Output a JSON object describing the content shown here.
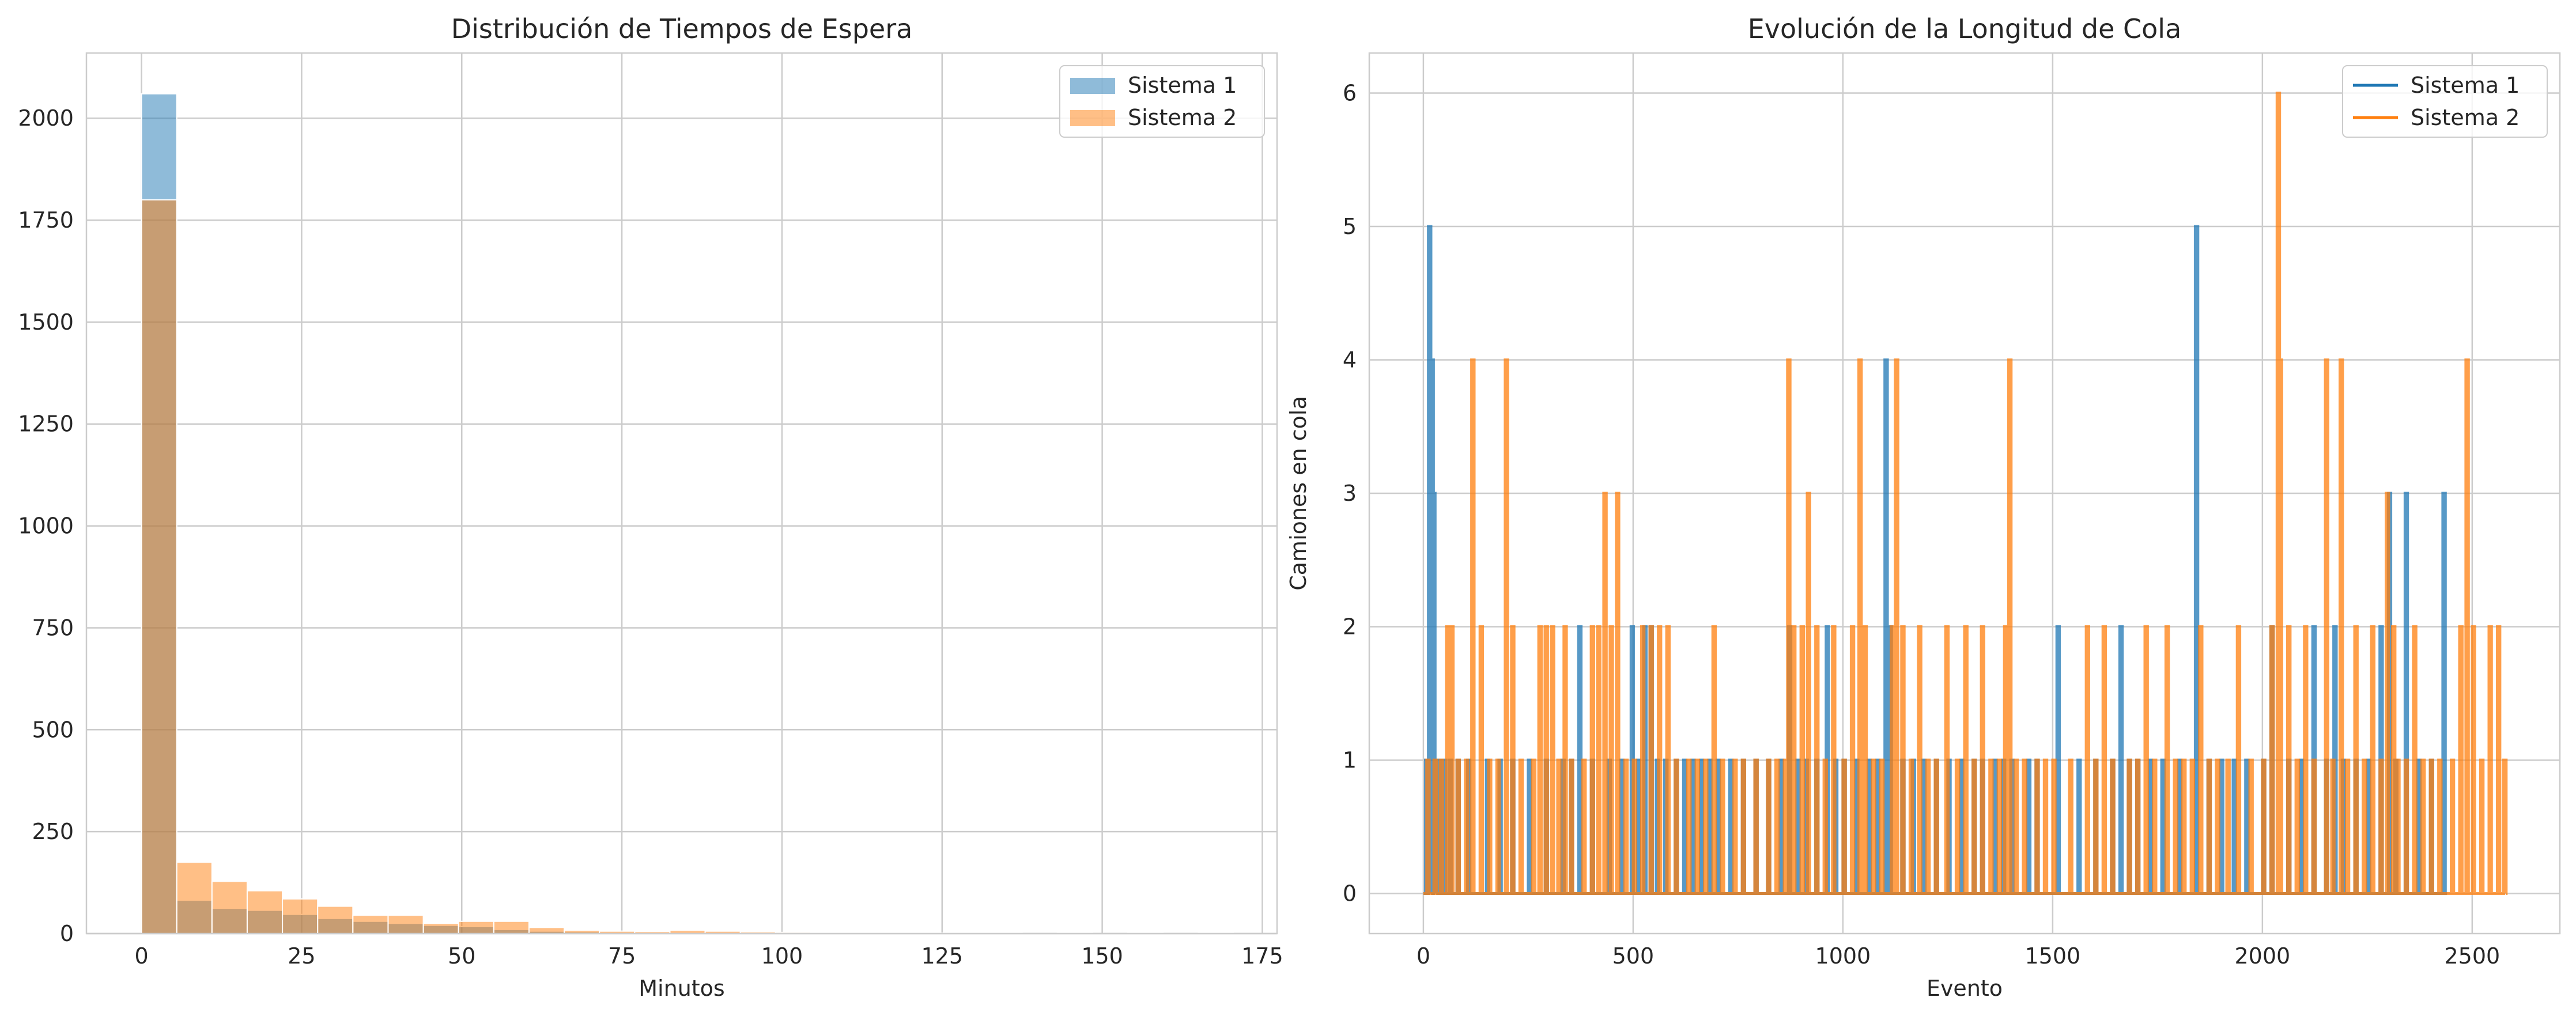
{
  "chart_data": [
    {
      "type": "bar",
      "subtype": "histogram",
      "title": "Distribución de Tiempos de Espera",
      "xlabel": "Minutos",
      "ylabel": "",
      "xlim": [
        -8.6,
        177.3
      ],
      "ylim": [
        0,
        2160
      ],
      "xticks": [
        0,
        25,
        50,
        75,
        100,
        125,
        150,
        175
      ],
      "yticks": [
        0,
        250,
        500,
        750,
        1000,
        1250,
        1500,
        1750,
        2000
      ],
      "grid": true,
      "legend": "top-right",
      "series": [
        {
          "name": "Sistema 1",
          "color": "#1f77b4",
          "opacity": 0.5,
          "bin_edges": [
            0,
            5.5,
            11,
            16.5,
            22,
            27.5,
            33,
            38.5,
            44,
            49.5,
            55,
            60.5,
            66,
            71.5,
            77,
            82.5,
            88,
            93.5,
            99
          ],
          "counts": [
            2060,
            82,
            62,
            57,
            47,
            37,
            30,
            25,
            20,
            17,
            10,
            6,
            4,
            3,
            2,
            2,
            1,
            1
          ]
        },
        {
          "name": "Sistema 2",
          "color": "#ff7f0e",
          "opacity": 0.5,
          "bin_edges": [
            0,
            5.5,
            11,
            16.5,
            22,
            27.5,
            33,
            38.5,
            44,
            49.5,
            55,
            60.5,
            66,
            71.5,
            77,
            82.5,
            88,
            93.5,
            99,
            104.5,
            110,
            115.5,
            121,
            126.5,
            132,
            137.5,
            143,
            148.5,
            154,
            159.5,
            165,
            170.5
          ],
          "counts": [
            1800,
            175,
            128,
            105,
            85,
            67,
            45,
            45,
            25,
            30,
            30,
            15,
            8,
            6,
            5,
            8,
            6,
            4,
            3,
            2,
            2,
            1,
            1,
            1,
            1,
            0,
            1,
            0,
            1,
            0,
            1
          ]
        }
      ]
    },
    {
      "type": "line",
      "subtype": "step",
      "title": "Evolución de la Longitud de Cola",
      "xlabel": "Evento",
      "ylabel": "Camiones en cola",
      "xlim": [
        -129,
        2709
      ],
      "ylim": [
        -0.3,
        6.3
      ],
      "xticks": [
        0,
        500,
        1000,
        1500,
        2000,
        2500
      ],
      "yticks": [
        0,
        1,
        2,
        3,
        4,
        5,
        6
      ],
      "grid": true,
      "legend": "top-right",
      "series": [
        {
          "name": "Sistema 1",
          "color": "#1f77b4",
          "x_max": 2440,
          "spikes": [
            [
              5,
              1
            ],
            [
              12,
              5
            ],
            [
              18,
              4
            ],
            [
              22,
              3
            ],
            [
              28,
              1
            ],
            [
              35,
              1
            ],
            [
              48,
              1
            ],
            [
              62,
              1
            ],
            [
              80,
              1
            ],
            [
              105,
              1
            ],
            [
              150,
              1
            ],
            [
              180,
              1
            ],
            [
              210,
              1
            ],
            [
              250,
              1
            ],
            [
              290,
              1
            ],
            [
              330,
              1
            ],
            [
              350,
              1
            ],
            [
              370,
              2
            ],
            [
              400,
              1
            ],
            [
              440,
              1
            ],
            [
              470,
              1
            ],
            [
              495,
              2
            ],
            [
              510,
              1
            ],
            [
              525,
              2
            ],
            [
              540,
              2
            ],
            [
              555,
              1
            ],
            [
              575,
              1
            ],
            [
              600,
              1
            ],
            [
              620,
              1
            ],
            [
              640,
              1
            ],
            [
              660,
              1
            ],
            [
              680,
              1
            ],
            [
              700,
              1
            ],
            [
              730,
              1
            ],
            [
              760,
              1
            ],
            [
              790,
              1
            ],
            [
              820,
              1
            ],
            [
              850,
              1
            ],
            [
              870,
              2
            ],
            [
              890,
              1
            ],
            [
              910,
              1
            ],
            [
              935,
              1
            ],
            [
              960,
              2
            ],
            [
              980,
              1
            ],
            [
              1000,
              1
            ],
            [
              1030,
              1
            ],
            [
              1060,
              1
            ],
            [
              1080,
              1
            ],
            [
              1100,
              4
            ],
            [
              1110,
              2
            ],
            [
              1140,
              1
            ],
            [
              1165,
              1
            ],
            [
              1190,
              1
            ],
            [
              1220,
              1
            ],
            [
              1250,
              1
            ],
            [
              1280,
              1
            ],
            [
              1310,
              1
            ],
            [
              1330,
              1
            ],
            [
              1360,
              1
            ],
            [
              1380,
              1
            ],
            [
              1400,
              1
            ],
            [
              1440,
              1
            ],
            [
              1460,
              1
            ],
            [
              1510,
              2
            ],
            [
              1560,
              1
            ],
            [
              1600,
              1
            ],
            [
              1640,
              1
            ],
            [
              1660,
              2
            ],
            [
              1680,
              1
            ],
            [
              1700,
              1
            ],
            [
              1730,
              1
            ],
            [
              1760,
              1
            ],
            [
              1800,
              1
            ],
            [
              1840,
              5
            ],
            [
              1870,
              1
            ],
            [
              1900,
              1
            ],
            [
              1930,
              1
            ],
            [
              1960,
              1
            ],
            [
              2000,
              1
            ],
            [
              2020,
              2
            ],
            [
              2060,
              1
            ],
            [
              2090,
              1
            ],
            [
              2120,
              2
            ],
            [
              2150,
              1
            ],
            [
              2170,
              2
            ],
            [
              2190,
              1
            ],
            [
              2220,
              1
            ],
            [
              2250,
              1
            ],
            [
              2280,
              2
            ],
            [
              2300,
              3
            ],
            [
              2315,
              1
            ],
            [
              2340,
              3
            ],
            [
              2370,
              1
            ],
            [
              2400,
              1
            ],
            [
              2430,
              3
            ]
          ]
        },
        {
          "name": "Sistema 2",
          "color": "#ff7f0e",
          "x_max": 2580,
          "spikes": [
            [
              8,
              1
            ],
            [
              25,
              1
            ],
            [
              40,
              1
            ],
            [
              55,
              2
            ],
            [
              65,
              2
            ],
            [
              80,
              1
            ],
            [
              100,
              1
            ],
            [
              115,
              4
            ],
            [
              135,
              2
            ],
            [
              155,
              1
            ],
            [
              175,
              1
            ],
            [
              195,
              4
            ],
            [
              210,
              2
            ],
            [
              230,
              1
            ],
            [
              260,
              1
            ],
            [
              275,
              2
            ],
            [
              290,
              2
            ],
            [
              305,
              2
            ],
            [
              320,
              1
            ],
            [
              335,
              2
            ],
            [
              350,
              1
            ],
            [
              380,
              1
            ],
            [
              400,
              2
            ],
            [
              415,
              2
            ],
            [
              430,
              3
            ],
            [
              445,
              2
            ],
            [
              460,
              3
            ],
            [
              480,
              1
            ],
            [
              500,
              1
            ],
            [
              520,
              2
            ],
            [
              540,
              2
            ],
            [
              560,
              2
            ],
            [
              580,
              2
            ],
            [
              600,
              1
            ],
            [
              630,
              1
            ],
            [
              650,
              1
            ],
            [
              670,
              1
            ],
            [
              690,
              2
            ],
            [
              710,
              1
            ],
            [
              740,
              1
            ],
            [
              760,
              1
            ],
            [
              790,
              1
            ],
            [
              820,
              1
            ],
            [
              840,
              1
            ],
            [
              860,
              1
            ],
            [
              868,
              4
            ],
            [
              880,
              2
            ],
            [
              900,
              2
            ],
            [
              915,
              3
            ],
            [
              935,
              2
            ],
            [
              955,
              1
            ],
            [
              975,
              2
            ],
            [
              1000,
              1
            ],
            [
              1020,
              2
            ],
            [
              1038,
              4
            ],
            [
              1050,
              2
            ],
            [
              1070,
              1
            ],
            [
              1090,
              1
            ],
            [
              1115,
              2
            ],
            [
              1125,
              4
            ],
            [
              1140,
              2
            ],
            [
              1160,
              1
            ],
            [
              1180,
              2
            ],
            [
              1200,
              1
            ],
            [
              1220,
              1
            ],
            [
              1245,
              2
            ],
            [
              1270,
              1
            ],
            [
              1290,
              2
            ],
            [
              1310,
              1
            ],
            [
              1330,
              2
            ],
            [
              1350,
              1
            ],
            [
              1370,
              1
            ],
            [
              1385,
              2
            ],
            [
              1395,
              4
            ],
            [
              1410,
              1
            ],
            [
              1430,
              1
            ],
            [
              1460,
              1
            ],
            [
              1480,
              1
            ],
            [
              1500,
              1
            ],
            [
              1540,
              1
            ],
            [
              1580,
              2
            ],
            [
              1600,
              1
            ],
            [
              1620,
              2
            ],
            [
              1640,
              1
            ],
            [
              1680,
              1
            ],
            [
              1700,
              1
            ],
            [
              1720,
              2
            ],
            [
              1740,
              1
            ],
            [
              1770,
              2
            ],
            [
              1790,
              1
            ],
            [
              1810,
              1
            ],
            [
              1830,
              1
            ],
            [
              1850,
              2
            ],
            [
              1870,
              1
            ],
            [
              1890,
              1
            ],
            [
              1915,
              1
            ],
            [
              1940,
              2
            ],
            [
              1970,
              1
            ],
            [
              2000,
              1
            ],
            [
              2020,
              2
            ],
            [
              2035,
              6
            ],
            [
              2040,
              4
            ],
            [
              2060,
              2
            ],
            [
              2080,
              1
            ],
            [
              2100,
              2
            ],
            [
              2120,
              1
            ],
            [
              2150,
              4
            ],
            [
              2165,
              1
            ],
            [
              2185,
              4
            ],
            [
              2200,
              1
            ],
            [
              2220,
              2
            ],
            [
              2240,
              1
            ],
            [
              2260,
              2
            ],
            [
              2280,
              1
            ],
            [
              2295,
              3
            ],
            [
              2310,
              2
            ],
            [
              2320,
              1
            ],
            [
              2340,
              1
            ],
            [
              2360,
              2
            ],
            [
              2380,
              1
            ],
            [
              2400,
              1
            ],
            [
              2420,
              1
            ],
            [
              2450,
              1
            ],
            [
              2470,
              2
            ],
            [
              2485,
              4
            ],
            [
              2500,
              2
            ],
            [
              2520,
              1
            ],
            [
              2540,
              2
            ],
            [
              2560,
              2
            ],
            [
              2575,
              1
            ]
          ]
        }
      ]
    }
  ]
}
